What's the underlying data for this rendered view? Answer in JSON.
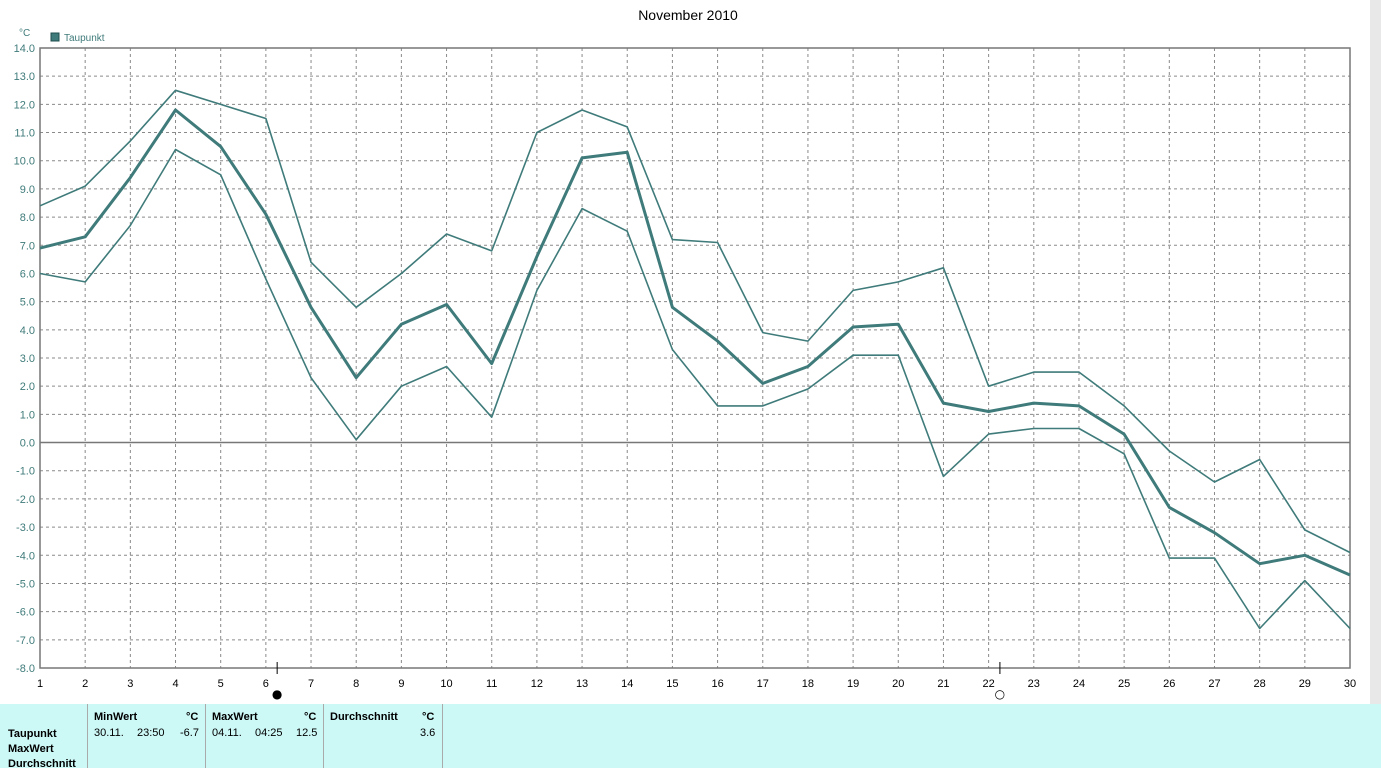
{
  "chart_data": {
    "type": "line",
    "title": "November 2010",
    "ylabel": "°C",
    "ylim": [
      -8,
      14
    ],
    "y_ticks": [
      "14.0",
      "13.0",
      "12.0",
      "11.0",
      "10.0",
      "9.0",
      "8.0",
      "7.0",
      "6.0",
      "5.0",
      "4.0",
      "3.0",
      "2.0",
      "1.0",
      "0.0",
      "-1.0",
      "-2.0",
      "-3.0",
      "-4.0",
      "-5.0",
      "-6.0",
      "-7.0",
      "-8.0"
    ],
    "categories": [
      "1",
      "2",
      "3",
      "4",
      "5",
      "6",
      "7",
      "8",
      "9",
      "10",
      "11",
      "12",
      "13",
      "14",
      "15",
      "16",
      "17",
      "18",
      "19",
      "20",
      "21",
      "22",
      "23",
      "24",
      "25",
      "26",
      "27",
      "28",
      "29",
      "30"
    ],
    "grid": true,
    "legend_position": "top-left",
    "legend": [
      "Taupunkt"
    ],
    "series_color": "#3f7b7a",
    "series": [
      {
        "name": "Taupunkt",
        "values": [
          6.9,
          7.3,
          9.4,
          11.8,
          10.5,
          8.1,
          4.8,
          2.3,
          4.2,
          4.9,
          2.8,
          6.6,
          10.1,
          10.3,
          4.8,
          3.6,
          2.1,
          2.7,
          4.1,
          4.2,
          1.4,
          1.1,
          1.4,
          1.3,
          0.3,
          -2.3,
          -3.2,
          -4.3,
          -4.0,
          -4.7
        ]
      },
      {
        "values": [
          8.4,
          9.1,
          10.7,
          12.5,
          12.0,
          11.5,
          6.4,
          4.8,
          6.0,
          7.4,
          6.8,
          11.0,
          11.8,
          11.2,
          7.2,
          7.1,
          3.9,
          3.6,
          5.4,
          5.7,
          6.2,
          2.0,
          2.5,
          2.5,
          1.3,
          -0.3,
          -1.4,
          -0.6,
          -3.1,
          -3.9
        ]
      },
      {
        "values": [
          6.0,
          5.7,
          7.7,
          10.4,
          9.5,
          5.8,
          2.3,
          0.1,
          2.0,
          2.7,
          0.9,
          5.4,
          8.3,
          7.5,
          3.3,
          1.3,
          1.3,
          1.9,
          3.1,
          3.1,
          -1.2,
          0.3,
          0.5,
          0.5,
          -0.4,
          -4.1,
          -4.1,
          -6.6,
          -4.9,
          -6.6
        ]
      }
    ],
    "moon_markers": [
      {
        "day": 6,
        "symbol": "●"
      },
      {
        "day": 22,
        "symbol": "○"
      }
    ]
  },
  "stats_table": {
    "row_labels": [
      "Taupunkt",
      "MaxWert",
      "Durchschnitt"
    ],
    "columns": [
      {
        "header": "MinWert",
        "unit": "°C",
        "date": "30.11.",
        "time": "23:50",
        "value": "-6.7"
      },
      {
        "header": "MaxWert",
        "unit": "°C",
        "date": "04.11.",
        "time": "04:25",
        "value": "12.5"
      },
      {
        "header": "Durchschnitt",
        "unit": "°C",
        "value": "3.6"
      }
    ]
  }
}
